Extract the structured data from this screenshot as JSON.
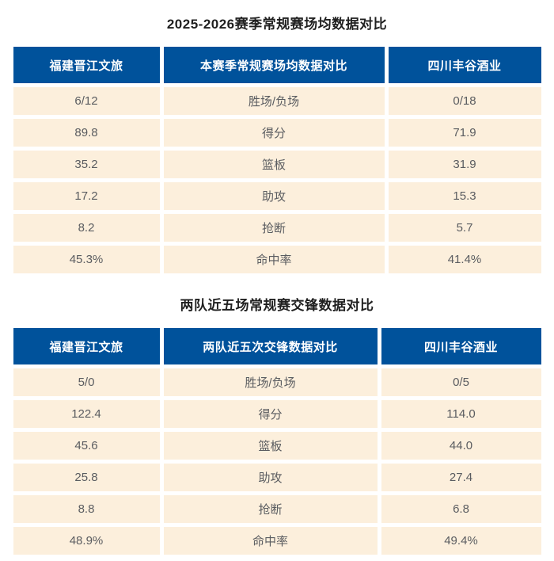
{
  "page": {
    "background": "#ffffff"
  },
  "colors": {
    "header_bg": "#00529b",
    "header_text": "#ffffff",
    "row_bg": "#fcefdc",
    "row_text": "#5a5c60",
    "title_text": "#1f1f1f"
  },
  "chart_data": [
    {
      "type": "table",
      "title": "2025-2026赛季常规赛场均数据对比",
      "columns": [
        "福建晋江文旅",
        "本赛季常规赛场均数据对比",
        "四川丰谷酒业"
      ],
      "rows": [
        [
          "6/12",
          "胜场/负场",
          "0/18"
        ],
        [
          "89.8",
          "得分",
          "71.9"
        ],
        [
          "35.2",
          "篮板",
          "31.9"
        ],
        [
          "17.2",
          "助攻",
          "15.3"
        ],
        [
          "8.2",
          "抢断",
          "5.7"
        ],
        [
          "45.3%",
          "命中率",
          "41.4%"
        ]
      ]
    },
    {
      "type": "table",
      "title": "两队近五场常规赛交锋数据对比",
      "columns": [
        "福建晋江文旅",
        "两队近五次交锋数据对比",
        "四川丰谷酒业"
      ],
      "rows": [
        [
          "5/0",
          "胜场/负场",
          "0/5"
        ],
        [
          "122.4",
          "得分",
          "114.0"
        ],
        [
          "45.6",
          "篮板",
          "44.0"
        ],
        [
          "25.8",
          "助攻",
          "27.4"
        ],
        [
          "8.8",
          "抢断",
          "6.8"
        ],
        [
          "48.9%",
          "命中率",
          "49.4%"
        ]
      ]
    }
  ]
}
